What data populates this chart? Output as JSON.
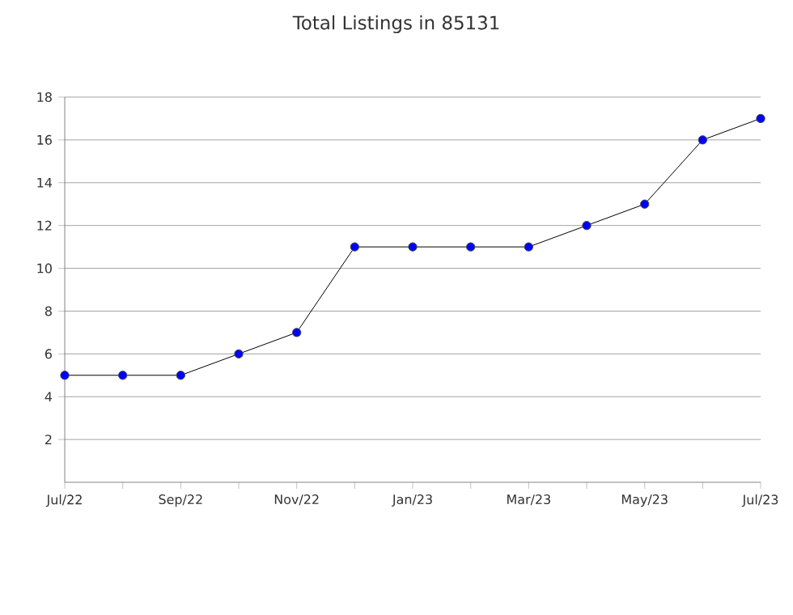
{
  "chart_data": {
    "type": "line",
    "title": "Total Listings in 85131",
    "categories": [
      "Jul/22",
      null,
      "Sep/22",
      null,
      "Nov/22",
      null,
      "Jan/23",
      null,
      "Mar/23",
      null,
      "May/23",
      null,
      "Jul/23"
    ],
    "series": [
      {
        "color": "#0000ff",
        "values": [
          5,
          5,
          5,
          6,
          7,
          11,
          11,
          11,
          11,
          12,
          13,
          16,
          17
        ]
      }
    ],
    "ylim": [
      0,
      18
    ],
    "yticks": [
      2,
      4,
      6,
      8,
      10,
      12,
      14,
      16,
      18
    ],
    "grid": "y",
    "marker": "circle",
    "line_style": "solid"
  }
}
